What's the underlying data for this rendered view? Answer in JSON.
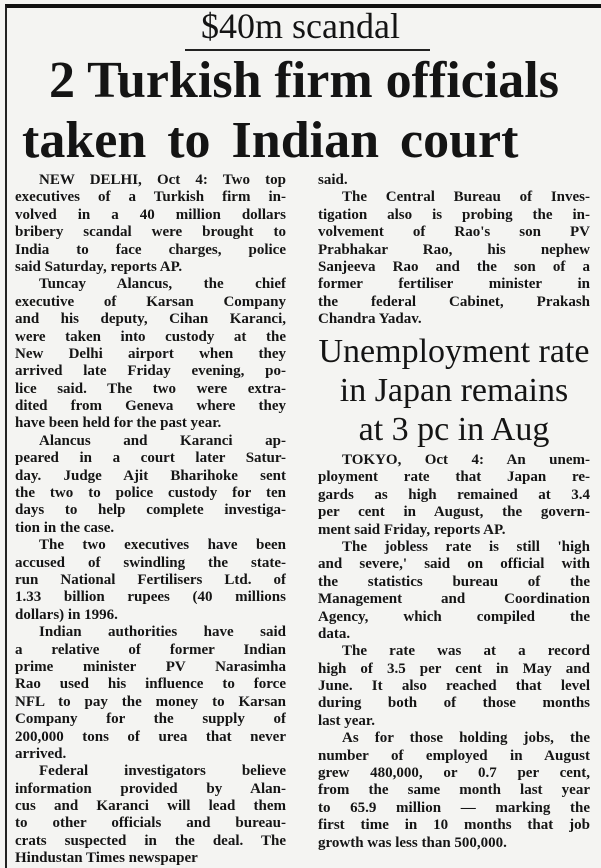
{
  "article1": {
    "kicker": "$40m scandal",
    "headline_line1": "2 Turkish firm officials",
    "headline_line2": "taken to Indian court",
    "left_paragraphs": [
      [
        "NEW DELHI, Oct 4: Two top",
        "executives of a Turkish firm in-",
        "volved in a 40 million dollars",
        "bribery scandal were brought to",
        "India to face charges, police",
        "said Saturday, reports AP."
      ],
      [
        "Tuncay Alancus, the chief",
        "executive of Karsan Company",
        "and his deputy, Cihan Karanci,",
        "were taken into custody at the",
        "New Delhi airport when they",
        "arrived late Friday evening, po-",
        "lice said. The two were extra-",
        "dited from Geneva where they",
        "have been held for the past year."
      ],
      [
        "Alancus and Karanci ap-",
        "peared in a court later Satur-",
        "day. Judge Ajit Bharihoke sent",
        "the two to police custody for ten",
        "days to help complete investiga-",
        "tion in the case."
      ],
      [
        "The two executives have been",
        "accused of swindling the state-",
        "run National Fertilisers Ltd. of",
        "1.33 billion rupees (40 millions",
        "dollars) in 1996."
      ],
      [
        "Indian authorities have said",
        "a relative of former Indian",
        "prime minister PV Narasimha",
        "Rao used his influence to force",
        "NFL to pay the money to Karsan",
        "Company for the supply of",
        "200,000 tons of urea that never",
        "arrived."
      ],
      [
        "Federal investigators believe",
        "information provided by Alan-",
        "cus and Karanci will lead them",
        "to other officials and bureau-",
        "crats suspected in the deal. The",
        "Hindustan Times newspaper"
      ]
    ],
    "right_paragraphs": [
      [
        "said."
      ],
      [
        "The Central Bureau of Inves-",
        "tigation also is probing the in-",
        "volvement of Rao's son PV",
        "Prabhakar Rao, his nephew",
        "Sanjeeva Rao and the son of a",
        "former fertiliser minister in",
        "the federal Cabinet, Prakash",
        "Chandra Yadav."
      ]
    ]
  },
  "article2": {
    "headline_lines": [
      "Unemployment rate",
      "in Japan remains",
      "at 3 pc in Aug"
    ],
    "paragraphs": [
      [
        "TOKYO, Oct 4: An unem-",
        "ployment rate that Japan re-",
        "gards as high remained at 3.4",
        "per cent in August, the govern-",
        "ment said Friday, reports AP."
      ],
      [
        "The jobless rate is still 'high",
        "and severe,' said on official with",
        "the statistics bureau of the",
        "Management and Coordination",
        "Agency, which compiled the",
        "data."
      ],
      [
        "The rate was at a record",
        "high of 3.5 per cent in May and",
        "June. It also reached that level",
        "during both of those months",
        "last year."
      ],
      [
        "As for those holding jobs, the",
        "number of employed in August",
        "grew 480,000, or 0.7 per cent,",
        "from the same month last year",
        "to 65.9 million — marking the",
        "first time in 10 months that job",
        "growth was less than 500,000."
      ]
    ]
  }
}
